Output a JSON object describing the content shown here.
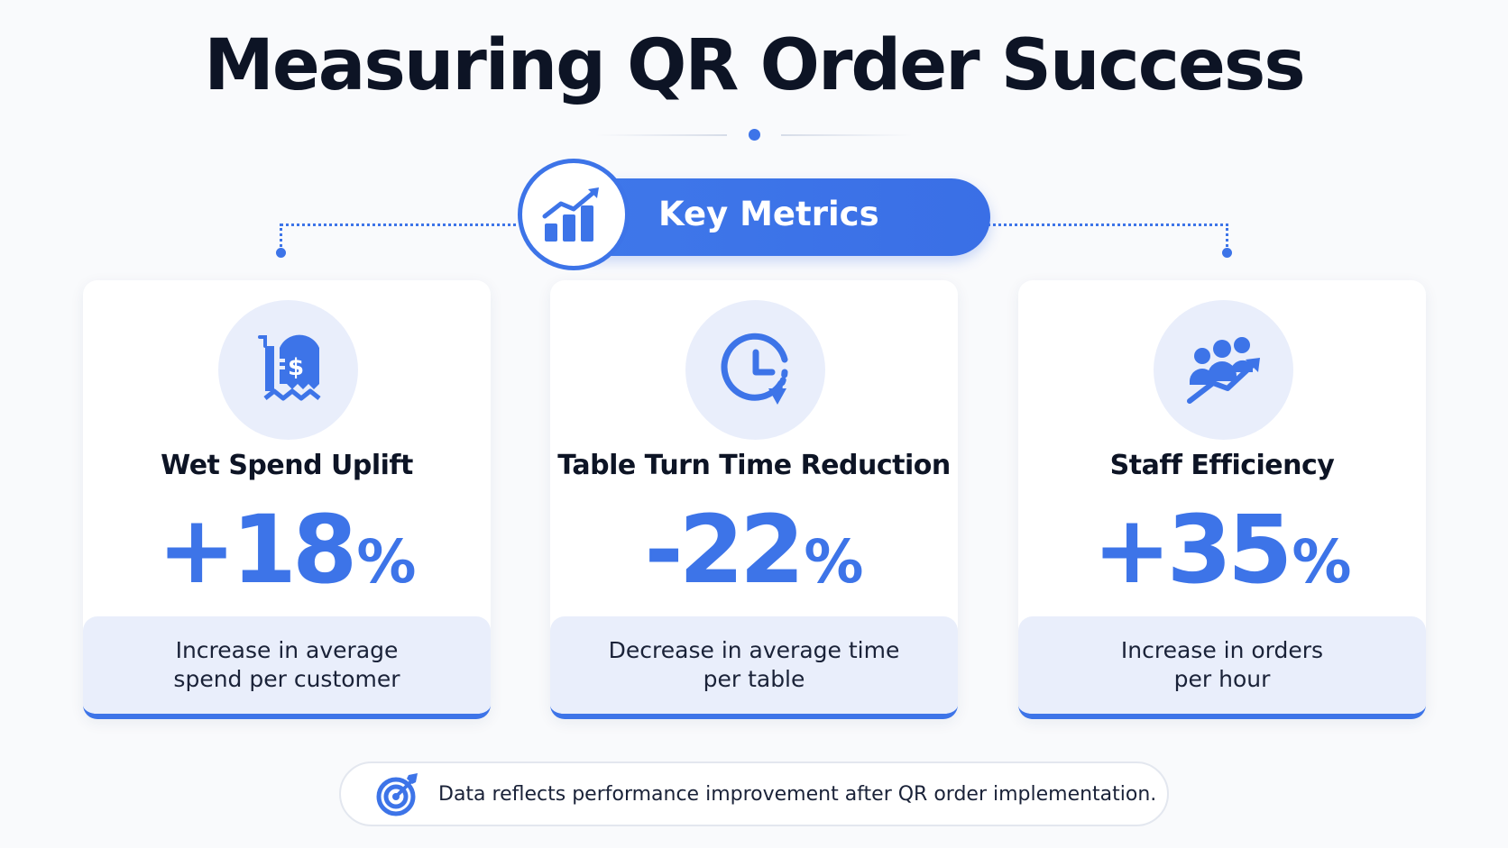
{
  "header": {
    "title": "Measuring QR Order Success"
  },
  "key_metrics": {
    "label": "Key Metrics",
    "icon": "bar-chart-growth-icon"
  },
  "metrics": [
    {
      "icon": "receipt-dollar-icon",
      "title": "Wet Spend Uplift",
      "value": "+18",
      "unit": "%",
      "desc_line1": "Increase in average",
      "desc_line2": "spend per customer"
    },
    {
      "icon": "clock-countdown-icon",
      "title": "Table Turn Time Reduction",
      "value": "-22",
      "unit": "%",
      "desc_line1": "Decrease in average time",
      "desc_line2": "per table"
    },
    {
      "icon": "team-growth-icon",
      "title": "Staff Efficiency",
      "value": "+35",
      "unit": "%",
      "desc_line1": "Increase in orders",
      "desc_line2": "per hour"
    }
  ],
  "footer": {
    "icon": "target-icon",
    "text": "Data reflects performance improvement after QR order implementation."
  },
  "colors": {
    "accent": "#3d74e8",
    "tint": "#e9eefb",
    "text": "#0d1425",
    "background": "#f9fafc"
  }
}
